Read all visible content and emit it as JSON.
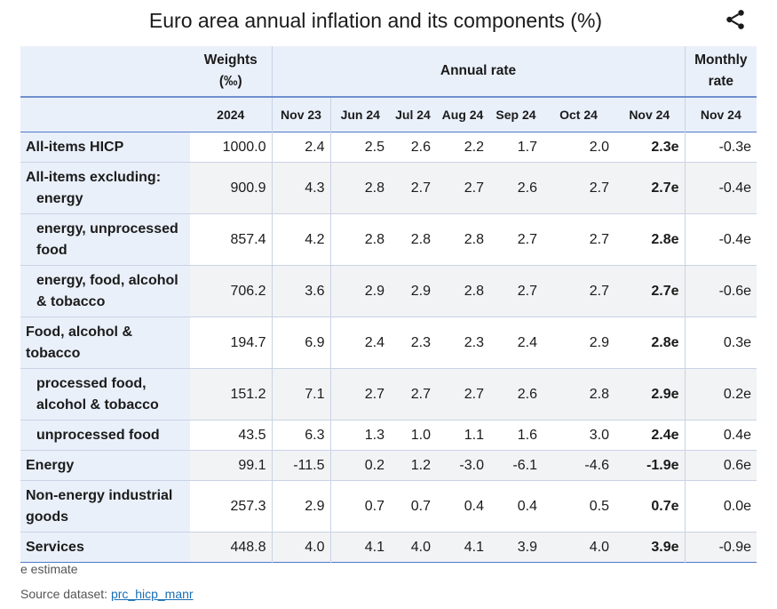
{
  "title": "Euro area annual inflation and its components (%)",
  "share_icon": "share-icon",
  "header": {
    "weights": "Weights",
    "weights_unit": "(‰)",
    "annual_rate": "Annual rate",
    "monthly_rate_line1": "Monthly",
    "monthly_rate_line2": "rate",
    "weights_year": "2024",
    "periods": [
      "Nov 23",
      "Jun 24",
      "Jul 24",
      "Aug 24",
      "Sep 24",
      "Oct 24",
      "Nov 24"
    ],
    "monthly_period": "Nov 24"
  },
  "rows": [
    {
      "label": "All-items HICP",
      "weight": "1000.0",
      "values": [
        "2.4",
        "2.5",
        "2.6",
        "2.2",
        "1.7",
        "2.0",
        "2.3e"
      ],
      "monthly": "-0.3e"
    },
    {
      "label": "All-items excluding:",
      "label2": "energy",
      "weight": "900.9",
      "values": [
        "4.3",
        "2.8",
        "2.7",
        "2.7",
        "2.6",
        "2.7",
        "2.7e"
      ],
      "monthly": "-0.4e"
    },
    {
      "label": "energy, unprocessed",
      "label2": "food",
      "weight": "857.4",
      "values": [
        "4.2",
        "2.8",
        "2.8",
        "2.8",
        "2.7",
        "2.7",
        "2.8e"
      ],
      "monthly": "-0.4e"
    },
    {
      "label": "energy, food, alcohol",
      "label2": "& tobacco",
      "weight": "706.2",
      "values": [
        "3.6",
        "2.9",
        "2.9",
        "2.8",
        "2.7",
        "2.7",
        "2.7e"
      ],
      "monthly": "-0.6e"
    },
    {
      "label": "Food, alcohol &",
      "label2": "tobacco",
      "weight": "194.7",
      "values": [
        "6.9",
        "2.4",
        "2.3",
        "2.3",
        "2.4",
        "2.9",
        "2.8e"
      ],
      "monthly": "0.3e"
    },
    {
      "label": "processed food,",
      "label2": "alcohol & tobacco",
      "weight": "151.2",
      "values": [
        "7.1",
        "2.7",
        "2.7",
        "2.7",
        "2.6",
        "2.8",
        "2.9e"
      ],
      "monthly": "0.2e"
    },
    {
      "label": "unprocessed food",
      "weight": "43.5",
      "values": [
        "6.3",
        "1.3",
        "1.0",
        "1.1",
        "1.6",
        "3.0",
        "2.4e"
      ],
      "monthly": "0.4e"
    },
    {
      "label": "Energy",
      "weight": "99.1",
      "values": [
        "-11.5",
        "0.2",
        "1.2",
        "-3.0",
        "-6.1",
        "-4.6",
        "-1.9e"
      ],
      "monthly": "0.6e"
    },
    {
      "label": "Non-energy industrial",
      "label2": "goods",
      "weight": "257.3",
      "values": [
        "2.9",
        "0.7",
        "0.7",
        "0.4",
        "0.4",
        "0.5",
        "0.7e"
      ],
      "monthly": "0.0e"
    },
    {
      "label": "Services",
      "weight": "448.8",
      "values": [
        "4.0",
        "4.1",
        "4.0",
        "4.1",
        "3.9",
        "4.0",
        "3.9e"
      ],
      "monthly": "-0.9e"
    }
  ],
  "footer": {
    "note": "e estimate",
    "source_prefix": "Source dataset:",
    "source_link": "prc_hicp_manr"
  }
}
